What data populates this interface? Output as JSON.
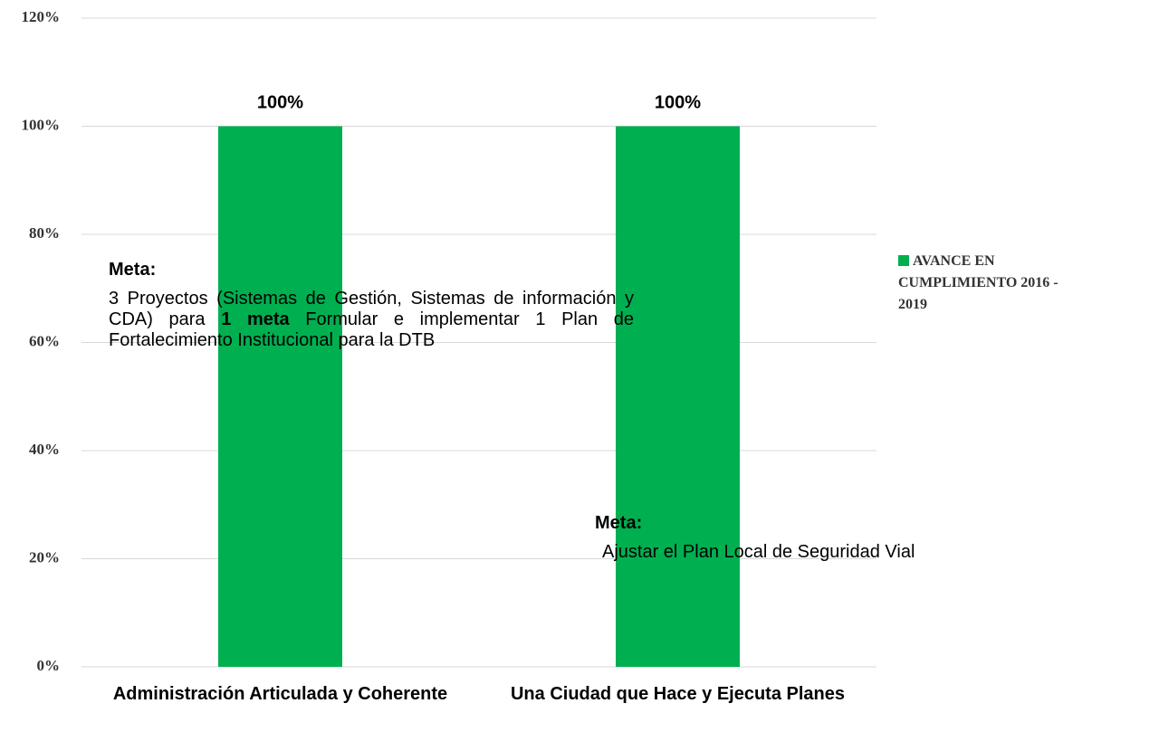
{
  "chart_data": {
    "type": "bar",
    "categories": [
      "Administración Articulada y Coherente",
      "Una Ciudad que Hace y Ejecuta Planes"
    ],
    "series": [
      {
        "name": "AVANCE EN CUMPLIMIENTO 2016 - 2019",
        "color": "#00b050",
        "values": [
          100,
          100
        ],
        "value_labels": [
          "100%",
          "100%"
        ]
      }
    ],
    "ylim": [
      0,
      120
    ],
    "yticks": [
      {
        "value": 0,
        "label": "0%"
      },
      {
        "value": 20,
        "label": "20%"
      },
      {
        "value": 40,
        "label": "40%"
      },
      {
        "value": 60,
        "label": "60%"
      },
      {
        "value": 80,
        "label": "80%"
      },
      {
        "value": 100,
        "label": "100%"
      },
      {
        "value": 120,
        "label": "120%"
      }
    ],
    "grid": true,
    "legend": "right",
    "annotations": [
      {
        "heading": "Meta:",
        "segments": [
          {
            "text": "3 Proyectos  (Sistemas de Gestión, Sistemas de información y CDA) para "
          },
          {
            "text": "1 meta",
            "bold": true
          },
          {
            "text": " Formular e implementar 1 Plan de Fortalecimiento Institucional para la DTB"
          }
        ]
      },
      {
        "heading": "Meta:",
        "segments": [
          {
            "text": "Ajustar el Plan Local de Seguridad Vial"
          }
        ]
      }
    ]
  }
}
